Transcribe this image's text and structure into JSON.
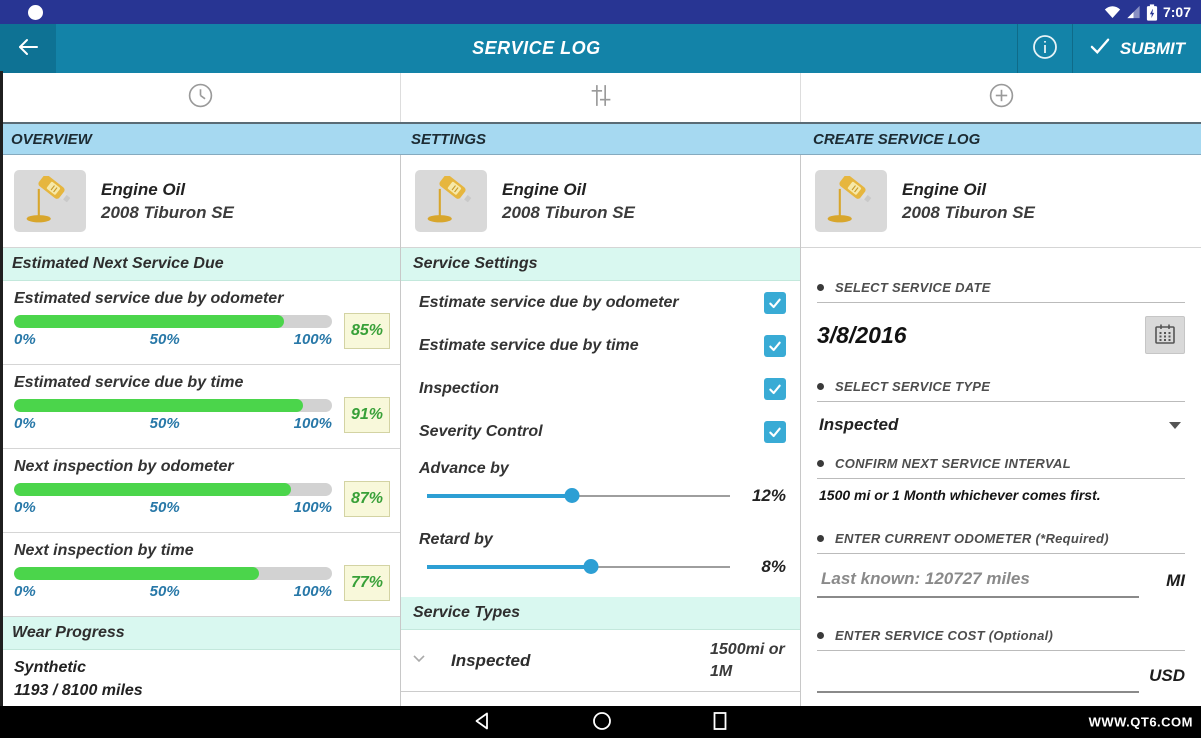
{
  "status_bar": {
    "time": "7:07"
  },
  "action_bar": {
    "title": "SERVICE LOG",
    "submit_label": "SUBMIT"
  },
  "column_headers": [
    "OVERVIEW",
    "SETTINGS",
    "CREATE SERVICE LOG"
  ],
  "vehicle": {
    "service": "Engine Oil",
    "name": "2008 Tiburon SE"
  },
  "overview": {
    "section_next_due": "Estimated Next Service Due",
    "ticks": [
      "0%",
      "50%",
      "100%"
    ],
    "stats": [
      {
        "label": "Estimated service due by odometer",
        "value": 85,
        "value_label": "85%"
      },
      {
        "label": "Estimated service due by time",
        "value": 91,
        "value_label": "91%"
      },
      {
        "label": "Next inspection by odometer",
        "value": 87,
        "value_label": "87%"
      },
      {
        "label": "Next inspection by time",
        "value": 77,
        "value_label": "77%"
      }
    ],
    "section_wear": "Wear Progress",
    "wear_type": "Synthetic",
    "wear_miles": "1193 / 8100 miles"
  },
  "settings": {
    "section_service_settings": "Service Settings",
    "toggles": [
      {
        "label": "Estimate service due by odometer",
        "checked": true
      },
      {
        "label": "Estimate service due by time",
        "checked": true
      },
      {
        "label": "Inspection",
        "checked": true
      },
      {
        "label": "Severity Control",
        "checked": true
      }
    ],
    "sliders": [
      {
        "label": "Advance by",
        "value_label": "12%",
        "thumb_pct": 48
      },
      {
        "label": "Retard by",
        "value_label": "8%",
        "thumb_pct": 54
      }
    ],
    "section_service_types": "Service Types",
    "service_types": [
      {
        "name": "Inspected",
        "interval_line1": "1500mi or",
        "interval_line2": "1M"
      }
    ]
  },
  "create_log": {
    "labels": {
      "date": "SELECT SERVICE DATE",
      "type": "SELECT SERVICE TYPE",
      "interval": "CONFIRM NEXT SERVICE INTERVAL",
      "odometer": "ENTER CURRENT ODOMETER (*Required)",
      "cost": "ENTER SERVICE COST (Optional)"
    },
    "date_value": "3/8/2016",
    "type_value": "Inspected",
    "interval_text": "1500 mi or 1 Month  whichever comes first.",
    "odometer_placeholder": "Last known: 120727 miles",
    "odometer_unit": "MI",
    "cost_unit": "USD"
  },
  "nav_bar": {
    "watermark": "WWW.QT6.COM"
  },
  "colors": {
    "status_bar": "#283593",
    "action_bar": "#1383a8",
    "tab_strip": "#a6d9f1",
    "section_header": "#d9f8f0",
    "progress_green": "#4bd54b",
    "accent_cyan": "#39abd5",
    "badge_bg": "#f8f8da",
    "badge_text": "#38a038",
    "tick_blue": "#2878a8"
  }
}
